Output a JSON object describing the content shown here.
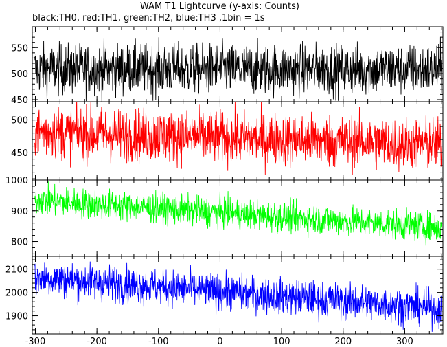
{
  "title": "WAM T1 Lightcurve (y-axis: Counts)",
  "subtitle": "black:TH0, red:TH1, green:TH2, blue:TH3 ,1bin = 1s",
  "chart_data": {
    "type": "line",
    "title": "WAM T1 Lightcurve (y-axis: Counts)",
    "subtitle": "black:TH0, red:TH1, green:TH2, blue:TH3 ,1bin = 1s",
    "xlim": [
      -305,
      362
    ],
    "x_ticks": [
      -300,
      -200,
      -100,
      0,
      100,
      200,
      300
    ],
    "x_tick_labels": [
      "-300",
      "-200",
      "-100",
      "0",
      "100",
      "200",
      "300"
    ],
    "grid": false,
    "panels": [
      {
        "series": "TH0",
        "color": "#000000",
        "ylim": [
          446,
          590
        ],
        "y_ticks": [
          450,
          500,
          550
        ],
        "y_tick_labels": [
          "450",
          "500",
          "550"
        ],
        "mean_start": 508,
        "mean_end": 508,
        "noise_sd": 24,
        "samples": [
          {
            "x": -300,
            "y": 512
          },
          {
            "x": -200,
            "y": 507
          },
          {
            "x": -100,
            "y": 509
          },
          {
            "x": 0,
            "y": 508
          },
          {
            "x": 100,
            "y": 506
          },
          {
            "x": 200,
            "y": 508
          },
          {
            "x": 300,
            "y": 507
          }
        ]
      },
      {
        "series": "TH1",
        "color": "#ff0000",
        "ylim": [
          408,
          528
        ],
        "y_ticks": [
          450,
          500
        ],
        "y_tick_labels": [
          "450",
          "500"
        ],
        "mean_start": 482,
        "mean_end": 462,
        "noise_sd": 20,
        "samples": [
          {
            "x": -300,
            "y": 482
          },
          {
            "x": -200,
            "y": 479
          },
          {
            "x": -100,
            "y": 476
          },
          {
            "x": 0,
            "y": 473
          },
          {
            "x": 100,
            "y": 470
          },
          {
            "x": 200,
            "y": 467
          },
          {
            "x": 300,
            "y": 464
          }
        ]
      },
      {
        "series": "TH2",
        "color": "#00ff00",
        "ylim": [
          752,
          1000
        ],
        "y_ticks": [
          800,
          900,
          1000
        ],
        "y_tick_labels": [
          "800",
          "900",
          "1000"
        ],
        "mean_start": 935,
        "mean_end": 845,
        "noise_sd": 24,
        "samples": [
          {
            "x": -300,
            "y": 935
          },
          {
            "x": -200,
            "y": 920
          },
          {
            "x": -100,
            "y": 905
          },
          {
            "x": 0,
            "y": 893
          },
          {
            "x": 100,
            "y": 878
          },
          {
            "x": 200,
            "y": 863
          },
          {
            "x": 300,
            "y": 850
          }
        ]
      },
      {
        "series": "TH3",
        "color": "#0000ff",
        "ylim": [
          1822,
          2155
        ],
        "y_ticks": [
          1900,
          2000,
          2100
        ],
        "y_tick_labels": [
          "1900",
          "2000",
          "2100"
        ],
        "mean_start": 2065,
        "mean_end": 1930,
        "noise_sd": 38,
        "samples": [
          {
            "x": -300,
            "y": 2065
          },
          {
            "x": -200,
            "y": 2045
          },
          {
            "x": -100,
            "y": 2025
          },
          {
            "x": 0,
            "y": 2005
          },
          {
            "x": 100,
            "y": 1985
          },
          {
            "x": 200,
            "y": 1965
          },
          {
            "x": 300,
            "y": 1945
          }
        ]
      }
    ]
  }
}
